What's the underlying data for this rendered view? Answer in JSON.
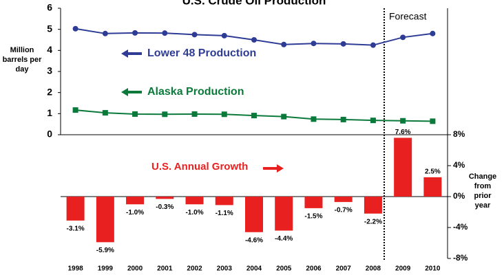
{
  "chart_data": [
    {
      "type": "line",
      "title": "U.S. Crude Oil Production",
      "ylabel": "Million barrels per day",
      "annotation": "Forecast",
      "ylim": [
        0,
        6
      ],
      "yticks": [
        0,
        1,
        2,
        3,
        4,
        5,
        6
      ],
      "series": [
        {
          "name": "Lower 48 Production",
          "color": "#2e3c96",
          "marker": "circle",
          "values": [
            5.03,
            4.8,
            4.83,
            4.82,
            4.75,
            4.7,
            4.5,
            4.28,
            4.33,
            4.31,
            4.25,
            4.62,
            4.8
          ]
        },
        {
          "name": "Alaska Production",
          "color": "#0a7a3a",
          "marker": "square",
          "values": [
            1.17,
            1.04,
            0.98,
            0.97,
            0.98,
            0.97,
            0.91,
            0.86,
            0.74,
            0.72,
            0.68,
            0.66,
            0.64
          ]
        }
      ]
    },
    {
      "type": "bar",
      "annotation": "U.S. Annual Growth",
      "ylabel": "Change from prior year",
      "color": "#e8201f",
      "categories": [
        "1998",
        "1999",
        "2000",
        "2001",
        "2002",
        "2003",
        "2004",
        "2005",
        "2006",
        "2007",
        "2008",
        "2009",
        "2010"
      ],
      "values": [
        -3.1,
        -5.9,
        -1.0,
        -0.3,
        -1.0,
        -1.1,
        -4.6,
        -4.4,
        -1.5,
        -0.7,
        -2.2,
        7.6,
        2.5
      ],
      "value_labels": [
        "-3.1%",
        "-5.9%",
        "-1.0%",
        "-0.3%",
        "-1.0%",
        "-1.1%",
        "-4.6%",
        "-4.4%",
        "-1.5%",
        "-0.7%",
        "-2.2%",
        "7.6%",
        "2.5%"
      ],
      "ylim": [
        -8,
        8
      ],
      "yticks": [
        {
          "value": 8,
          "label": "8%"
        },
        {
          "value": 4,
          "label": "4%"
        },
        {
          "value": 0,
          "label": "0%"
        },
        {
          "value": -4,
          "label": "-4%"
        },
        {
          "value": -8,
          "label": "-8%"
        }
      ]
    }
  ]
}
